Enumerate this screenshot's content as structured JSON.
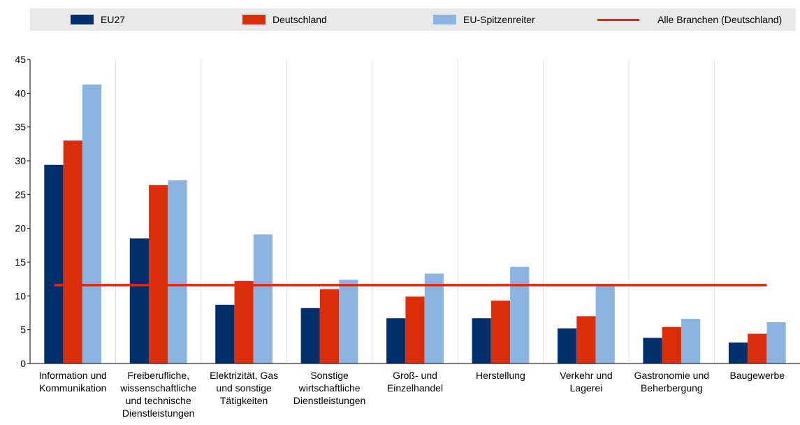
{
  "legend": {
    "items": [
      {
        "label": "EU27",
        "color": "#002f6c"
      },
      {
        "label": "Deutschland",
        "color": "#dc2d0a"
      },
      {
        "label": "EU-Spitzenreiter",
        "color": "#8cb4e1"
      },
      {
        "label": "Alle Branchen (Deutschland)",
        "color": "#dc2d0a",
        "kind": "line"
      }
    ]
  },
  "chart_data": {
    "type": "bar",
    "categories": [
      [
        "Information und",
        "Kommunikation"
      ],
      [
        "Freiberufliche,",
        "wissenschaftliche",
        "und technische",
        "Dienstleistungen"
      ],
      [
        "Elektrizität, Gas",
        "und sonstige",
        "Tätigkeiten"
      ],
      [
        "Sonstige",
        "wirtschaftliche",
        "Dienstleistungen"
      ],
      [
        "Groß- und",
        "Einzelhandel"
      ],
      [
        "Herstellung"
      ],
      [
        "Verkehr und",
        "Lagerei"
      ],
      [
        "Gastronomie und",
        "Beherbergung"
      ],
      [
        "Baugewerbe"
      ]
    ],
    "series": [
      {
        "name": "EU27",
        "color": "#002f6c",
        "values": [
          29.4,
          18.5,
          8.7,
          8.2,
          6.7,
          6.7,
          5.2,
          3.8,
          3.1
        ]
      },
      {
        "name": "Deutschland",
        "color": "#dc2d0a",
        "values": [
          33.0,
          26.4,
          12.2,
          11.0,
          9.9,
          9.3,
          7.0,
          5.4,
          4.4
        ]
      },
      {
        "name": "EU-Spitzenreiter",
        "color": "#8cb4e1",
        "values": [
          41.3,
          27.1,
          19.1,
          12.4,
          13.3,
          14.3,
          11.8,
          6.6,
          6.1
        ]
      }
    ],
    "reference_line": {
      "name": "Alle Branchen (Deutschland)",
      "value": 11.6,
      "color": "#dc2d0a"
    },
    "ylim": [
      0,
      45
    ],
    "yticks": [
      0,
      5,
      10,
      15,
      20,
      25,
      30,
      35,
      40,
      45
    ],
    "grid": "vertical separators between categories",
    "legend_position": "top"
  }
}
